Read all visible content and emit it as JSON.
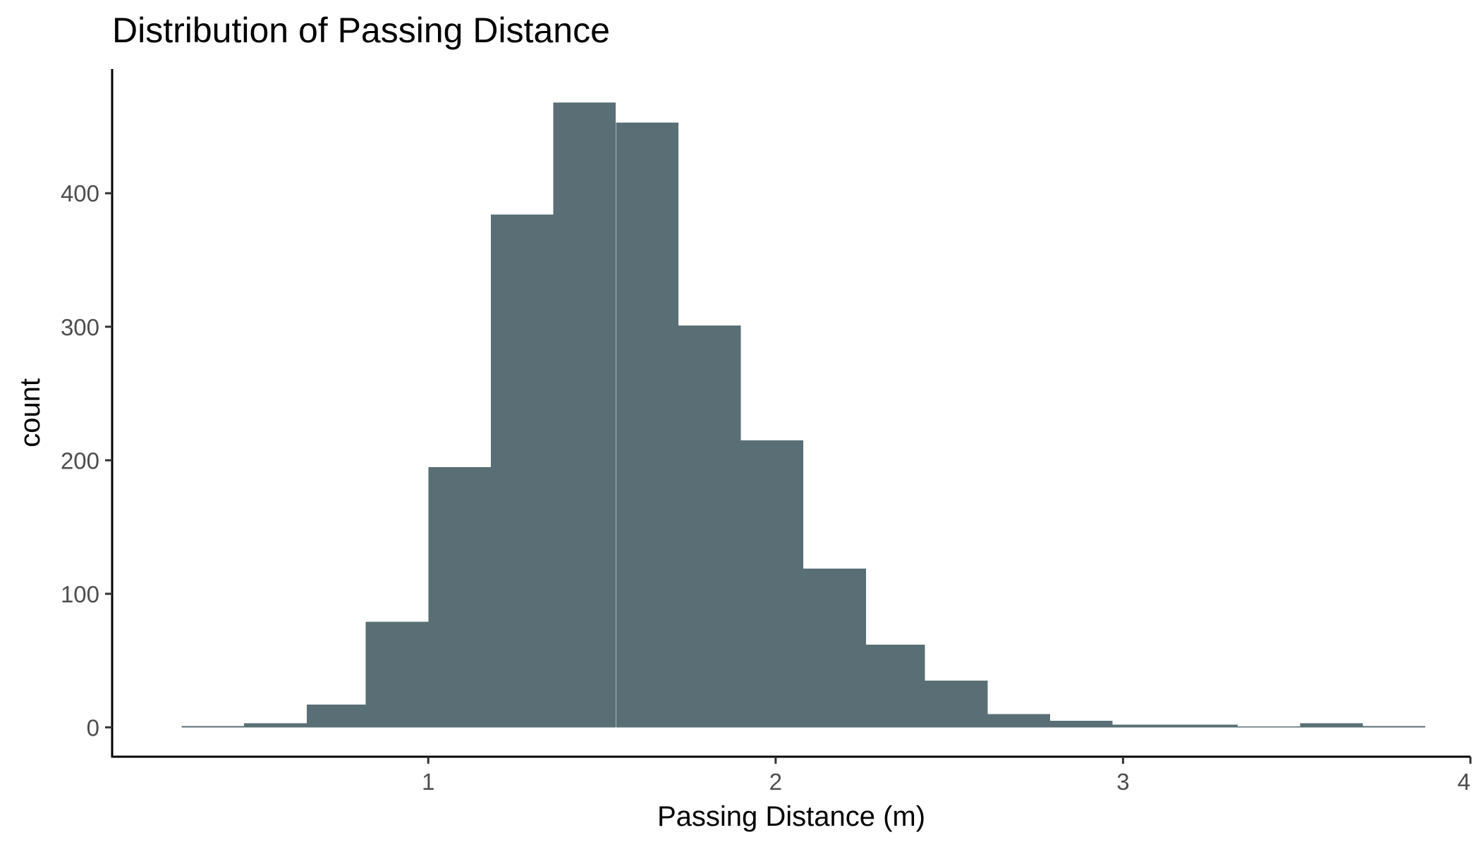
{
  "chart_data": {
    "type": "bar",
    "subtype": "histogram",
    "title": "Distribution of Passing Distance",
    "xlabel": "Passing Distance (m)",
    "ylabel": "count",
    "xlim": [
      0.09,
      4.0
    ],
    "ylim": [
      -22,
      493
    ],
    "xticks": [
      1,
      2,
      3,
      4
    ],
    "yticks": [
      0,
      100,
      200,
      300,
      400
    ],
    "grid": false,
    "legend": "none",
    "bar_color": "#596f75",
    "bins": [
      {
        "x0": 0.29,
        "x1": 0.47,
        "count": 1
      },
      {
        "x0": 0.47,
        "x1": 0.65,
        "count": 3
      },
      {
        "x0": 0.65,
        "x1": 0.82,
        "count": 17
      },
      {
        "x0": 0.82,
        "x1": 1.0,
        "count": 79
      },
      {
        "x0": 1.0,
        "x1": 1.18,
        "count": 195
      },
      {
        "x0": 1.18,
        "x1": 1.36,
        "count": 384
      },
      {
        "x0": 1.36,
        "x1": 1.54,
        "count": 468
      },
      {
        "x0": 1.54,
        "x1": 1.72,
        "count": 453
      },
      {
        "x0": 1.72,
        "x1": 1.9,
        "count": 301
      },
      {
        "x0": 1.9,
        "x1": 2.08,
        "count": 215
      },
      {
        "x0": 2.08,
        "x1": 2.26,
        "count": 119
      },
      {
        "x0": 2.26,
        "x1": 2.43,
        "count": 62
      },
      {
        "x0": 2.43,
        "x1": 2.61,
        "count": 35
      },
      {
        "x0": 2.61,
        "x1": 2.79,
        "count": 10
      },
      {
        "x0": 2.79,
        "x1": 2.97,
        "count": 5
      },
      {
        "x0": 2.97,
        "x1": 3.15,
        "count": 2
      },
      {
        "x0": 3.15,
        "x1": 3.33,
        "count": 2
      },
      {
        "x0": 3.33,
        "x1": 3.51,
        "count": 0
      },
      {
        "x0": 3.51,
        "x1": 3.69,
        "count": 3
      },
      {
        "x0": 3.69,
        "x1": 3.87,
        "count": 1
      }
    ]
  }
}
